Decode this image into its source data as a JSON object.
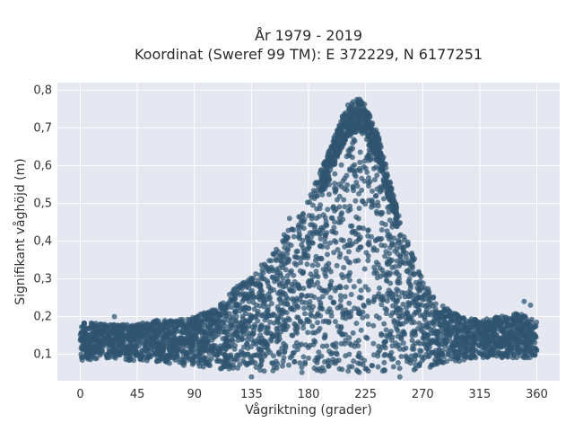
{
  "chart_data": {
    "type": "scatter",
    "title_lines": [
      "År 1979 - 2019",
      "Koordinat (Sweref 99 TM): E 372229, N 6177251"
    ],
    "xlabel": "Vågriktning (grader)",
    "ylabel": "Signifikant våghöjd (m)",
    "xlim": [
      -18,
      378
    ],
    "ylim": [
      0.03,
      0.82
    ],
    "xticks": [
      0,
      45,
      90,
      135,
      180,
      225,
      270,
      315,
      360
    ],
    "xtick_labels": [
      "0",
      "45",
      "90",
      "135",
      "180",
      "225",
      "270",
      "315",
      "360"
    ],
    "yticks": [
      0.1,
      0.2,
      0.3,
      0.4,
      0.5,
      0.6,
      0.7,
      0.8
    ],
    "ytick_labels": [
      "0,1",
      "0,2",
      "0,3",
      "0,4",
      "0,5",
      "0,6",
      "0,7",
      "0,8"
    ],
    "grid": true,
    "colors": {
      "marker": "#2f5570",
      "plot_bg": "#e5e8f1",
      "grid": "#ffffff"
    },
    "envelope": [
      {
        "x": 0,
        "ymin": 0.08,
        "ymax": 0.19
      },
      {
        "x": 15,
        "ymin": 0.09,
        "ymax": 0.18
      },
      {
        "x": 30,
        "ymin": 0.09,
        "ymax": 0.18
      },
      {
        "x": 45,
        "ymin": 0.08,
        "ymax": 0.18
      },
      {
        "x": 60,
        "ymin": 0.08,
        "ymax": 0.19
      },
      {
        "x": 75,
        "ymin": 0.07,
        "ymax": 0.19
      },
      {
        "x": 90,
        "ymin": 0.07,
        "ymax": 0.2
      },
      {
        "x": 105,
        "ymin": 0.06,
        "ymax": 0.22
      },
      {
        "x": 120,
        "ymin": 0.06,
        "ymax": 0.27
      },
      {
        "x": 135,
        "ymin": 0.06,
        "ymax": 0.31
      },
      {
        "x": 150,
        "ymin": 0.05,
        "ymax": 0.36
      },
      {
        "x": 165,
        "ymin": 0.05,
        "ymax": 0.44
      },
      {
        "x": 180,
        "ymin": 0.05,
        "ymax": 0.51
      },
      {
        "x": 195,
        "ymin": 0.05,
        "ymax": 0.63
      },
      {
        "x": 210,
        "ymin": 0.05,
        "ymax": 0.76
      },
      {
        "x": 220,
        "ymin": 0.05,
        "ymax": 0.78
      },
      {
        "x": 225,
        "ymin": 0.05,
        "ymax": 0.76
      },
      {
        "x": 235,
        "ymin": 0.05,
        "ymax": 0.68
      },
      {
        "x": 245,
        "ymin": 0.05,
        "ymax": 0.55
      },
      {
        "x": 255,
        "ymin": 0.05,
        "ymax": 0.43
      },
      {
        "x": 265,
        "ymin": 0.06,
        "ymax": 0.34
      },
      {
        "x": 275,
        "ymin": 0.06,
        "ymax": 0.27
      },
      {
        "x": 285,
        "ymin": 0.07,
        "ymax": 0.23
      },
      {
        "x": 300,
        "ymin": 0.08,
        "ymax": 0.2
      },
      {
        "x": 315,
        "ymin": 0.09,
        "ymax": 0.19
      },
      {
        "x": 330,
        "ymin": 0.09,
        "ymax": 0.2
      },
      {
        "x": 345,
        "ymin": 0.09,
        "ymax": 0.21
      },
      {
        "x": 360,
        "ymin": 0.09,
        "ymax": 0.19
      }
    ],
    "outliers": [
      {
        "x": 27,
        "y": 0.2
      },
      {
        "x": 135,
        "y": 0.04
      },
      {
        "x": 165,
        "y": 0.46
      },
      {
        "x": 187,
        "y": 0.52
      },
      {
        "x": 262,
        "y": 0.36
      },
      {
        "x": 323,
        "y": 0.17
      },
      {
        "x": 342,
        "y": 0.2
      },
      {
        "x": 350,
        "y": 0.24
      },
      {
        "x": 355,
        "y": 0.23
      },
      {
        "x": 252,
        "y": 0.04
      }
    ]
  }
}
